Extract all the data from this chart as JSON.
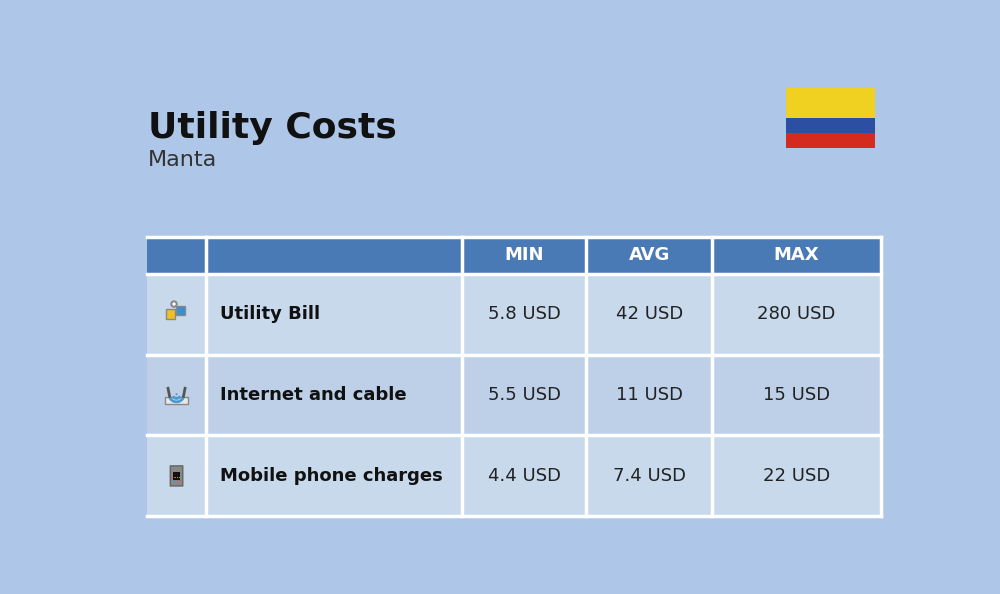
{
  "title": "Utility Costs",
  "subtitle": "Manta",
  "background_color": "#aec6e8",
  "header_bg_color": "#4a7ab5",
  "header_text_color": "#ffffff",
  "row_bg_color_odd": "#c8d9ec",
  "row_bg_color_even": "#bdd0e8",
  "icon_col_bg": "#b8ceea",
  "col_headers": [
    "",
    "",
    "MIN",
    "AVG",
    "MAX"
  ],
  "rows": [
    {
      "icon_label": "utility",
      "name": "Utility Bill",
      "min": "5.8 USD",
      "avg": "42 USD",
      "max": "280 USD"
    },
    {
      "icon_label": "internet",
      "name": "Internet and cable",
      "min": "5.5 USD",
      "avg": "11 USD",
      "max": "15 USD"
    },
    {
      "icon_label": "mobile",
      "name": "Mobile phone charges",
      "min": "4.4 USD",
      "avg": "7.4 USD",
      "max": "22 USD"
    }
  ],
  "title_fontsize": 26,
  "subtitle_fontsize": 16,
  "header_fontsize": 13,
  "cell_fontsize": 13,
  "name_fontsize": 13,
  "flag_yellow": "#f0d020",
  "flag_blue": "#2c4fa3",
  "flag_red": "#d52b1e"
}
